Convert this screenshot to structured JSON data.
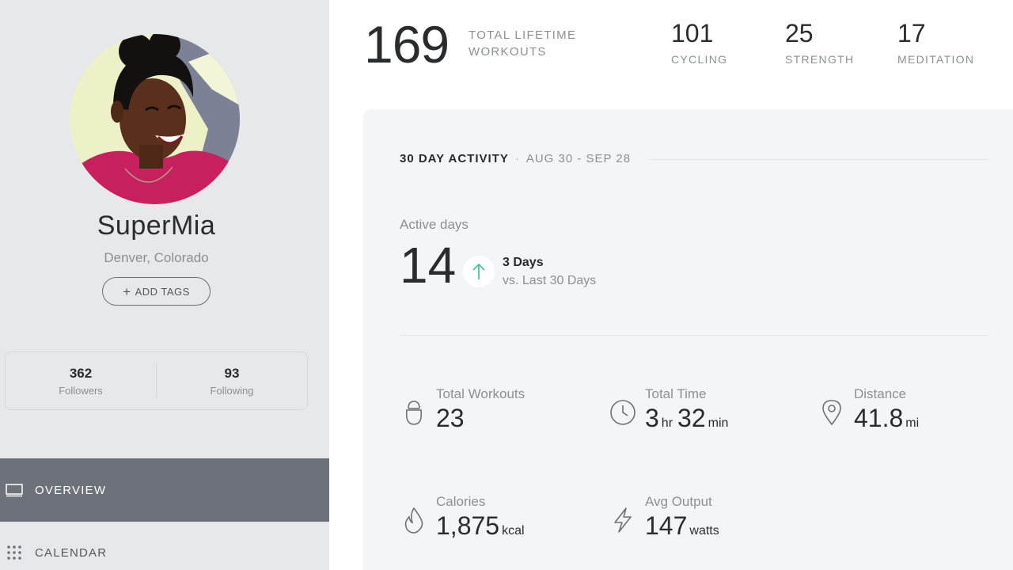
{
  "profile": {
    "username": "SuperMia",
    "location": "Denver, Colorado",
    "add_tags_label": "ADD TAGS",
    "followers_count": "362",
    "followers_label": "Followers",
    "following_count": "93",
    "following_label": "Following"
  },
  "nav": {
    "overview": "OVERVIEW",
    "calendar": "CALENDAR"
  },
  "lifetime": {
    "total": "169",
    "label": "TOTAL LIFETIME WORKOUTS",
    "categories": [
      {
        "count": "101",
        "label": "CYCLING"
      },
      {
        "count": "25",
        "label": "STRENGTH"
      },
      {
        "count": "17",
        "label": "MEDITATION"
      }
    ]
  },
  "activity": {
    "title": "30 DAY ACTIVITY",
    "separator": "·",
    "range": "AUG 30 - SEP 28",
    "active_days_label": "Active days",
    "active_days": "14",
    "trend_days": "3 Days",
    "trend_compare": "vs. Last 30 Days",
    "metrics": {
      "total_workouts": {
        "label": "Total Workouts",
        "value": "23"
      },
      "total_time": {
        "label": "Total Time",
        "hours": "3",
        "hours_unit": "hr",
        "minutes": "32",
        "minutes_unit": "min"
      },
      "distance": {
        "label": "Distance",
        "value": "41.8",
        "unit": "mi"
      },
      "calories": {
        "label": "Calories",
        "value": "1,875",
        "unit": "kcal"
      },
      "avg_output": {
        "label": "Avg Output",
        "value": "147",
        "unit": "watts"
      }
    }
  },
  "colors": {
    "sidebar_bg": "#e7e8ea",
    "nav_active_bg": "#6d7179",
    "trend_up": "#4cc3a0",
    "card_bg": "#f4f5f7"
  },
  "icons": {
    "avatar": "profile-photo",
    "add": "plus-icon",
    "overview": "monitor-icon",
    "calendar": "grid-dots-icon",
    "trend": "arrow-up-icon",
    "workouts": "kettlebell-icon",
    "time": "clock-icon",
    "distance": "location-pin-icon",
    "calories": "flame-icon",
    "output": "lightning-icon"
  }
}
